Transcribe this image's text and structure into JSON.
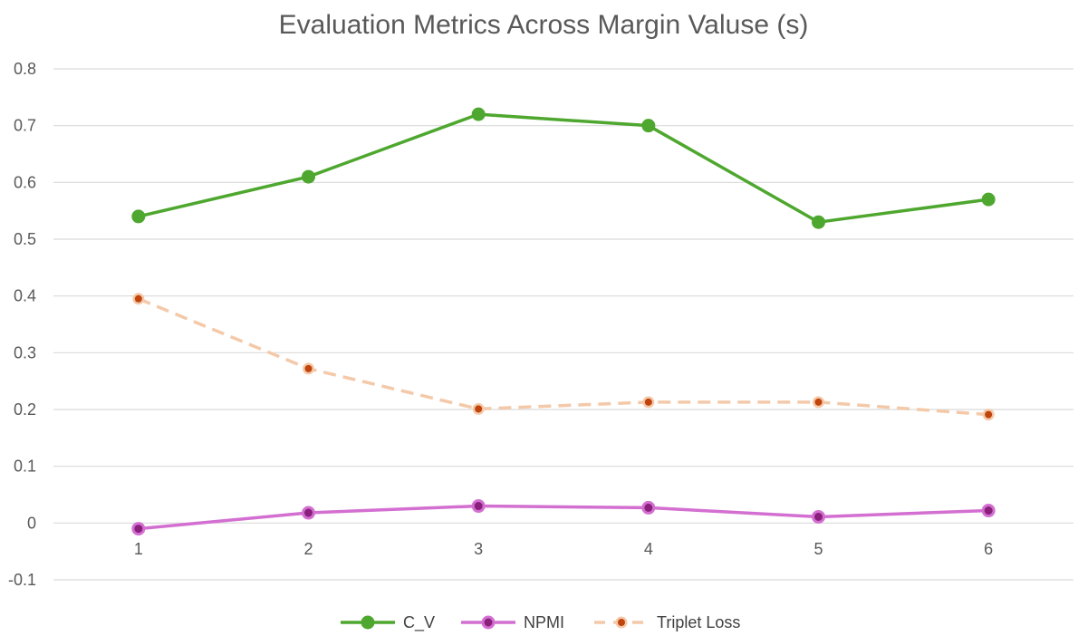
{
  "chart_data": {
    "type": "line",
    "title": "Evaluation Metrics Across Margin Valuse (s)",
    "xlabel": "",
    "ylabel": "",
    "categories": [
      "1",
      "2",
      "3",
      "4",
      "5",
      "6"
    ],
    "ylim": [
      -0.1,
      0.8
    ],
    "yticks": [
      "-0.1",
      "0",
      "0.1",
      "0.2",
      "0.3",
      "0.4",
      "0.5",
      "0.6",
      "0.7",
      "0.8"
    ],
    "grid": true,
    "legend_position": "bottom",
    "series": [
      {
        "name": "C_V",
        "values": [
          0.54,
          0.61,
          0.72,
          0.7,
          0.53,
          0.57
        ],
        "color": "#4ea72e",
        "marker_fill": "#4ea72e",
        "dashed": false
      },
      {
        "name": "NPMI",
        "values": [
          -0.01,
          0.018,
          0.03,
          0.027,
          0.011,
          0.022
        ],
        "color": "#d36fd1",
        "marker_fill": "#8a1f7c",
        "dashed": false
      },
      {
        "name": "Triplet Loss",
        "values": [
          0.395,
          0.272,
          0.201,
          0.213,
          0.213,
          0.191
        ],
        "color": "#f4c9a9",
        "marker_fill": "#c0440c",
        "dashed": true
      }
    ]
  }
}
